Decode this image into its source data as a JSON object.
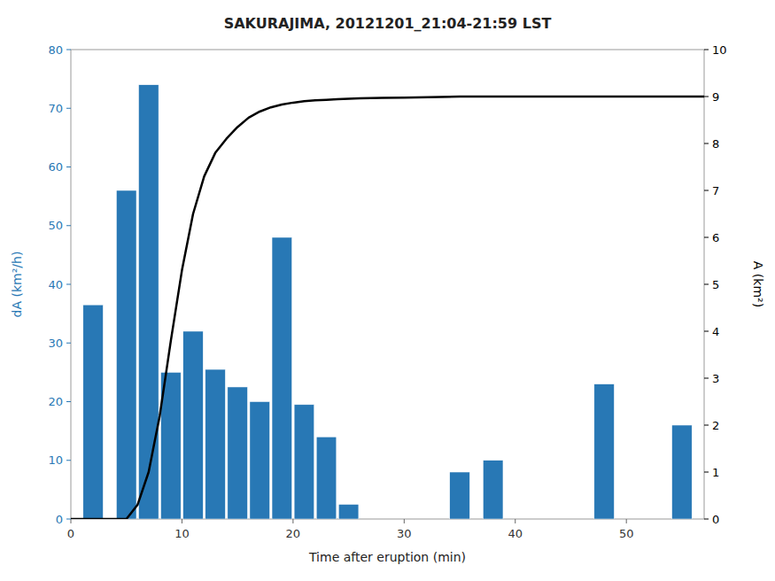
{
  "chart_data": {
    "type": "bar",
    "title": "SAKURAJIMA, 20121201_21:04-21:59 LST",
    "x_label": "Time after eruption (min)",
    "y_label": "dA (km²/h)",
    "y2_label": "A (km²)",
    "xlim": [
      0,
      57
    ],
    "xticks": [
      0,
      10,
      20,
      30,
      40,
      50
    ],
    "ylim": [
      0,
      80
    ],
    "yticks": [
      0,
      10,
      20,
      30,
      40,
      50,
      60,
      70,
      80
    ],
    "y2lim": [
      0,
      10
    ],
    "y2ticks": [
      0,
      1,
      2,
      3,
      4,
      5,
      6,
      7,
      8,
      9,
      10
    ],
    "series": [
      {
        "type": "bar",
        "color": "#2878b5",
        "x": [
          2,
          5,
          7,
          9,
          11,
          13,
          15,
          17,
          19,
          21,
          23,
          25,
          35,
          38,
          48,
          55
        ],
        "values": [
          36.5,
          56,
          74,
          25,
          32,
          25.5,
          22.5,
          20,
          48,
          19.5,
          14,
          2.5,
          8,
          10,
          23,
          16
        ]
      },
      {
        "type": "line",
        "color": "#000000",
        "axis": "y2",
        "x": [
          0,
          1,
          2,
          3,
          4,
          5,
          6,
          7,
          8,
          9,
          10,
          11,
          12,
          13,
          14,
          15,
          16,
          17,
          18,
          19,
          20,
          21,
          22,
          23,
          24,
          25,
          26,
          27,
          28,
          30,
          35,
          40,
          45,
          50,
          55,
          57
        ],
        "values": [
          0,
          0,
          0,
          0,
          0,
          0,
          0.3,
          1.0,
          2.2,
          3.8,
          5.3,
          6.5,
          7.3,
          7.8,
          8.1,
          8.35,
          8.55,
          8.68,
          8.77,
          8.83,
          8.87,
          8.9,
          8.92,
          8.93,
          8.945,
          8.955,
          8.96,
          8.965,
          8.97,
          8.975,
          9.0,
          9.0,
          9.0,
          9.0,
          9.0,
          9.0
        ]
      }
    ]
  }
}
